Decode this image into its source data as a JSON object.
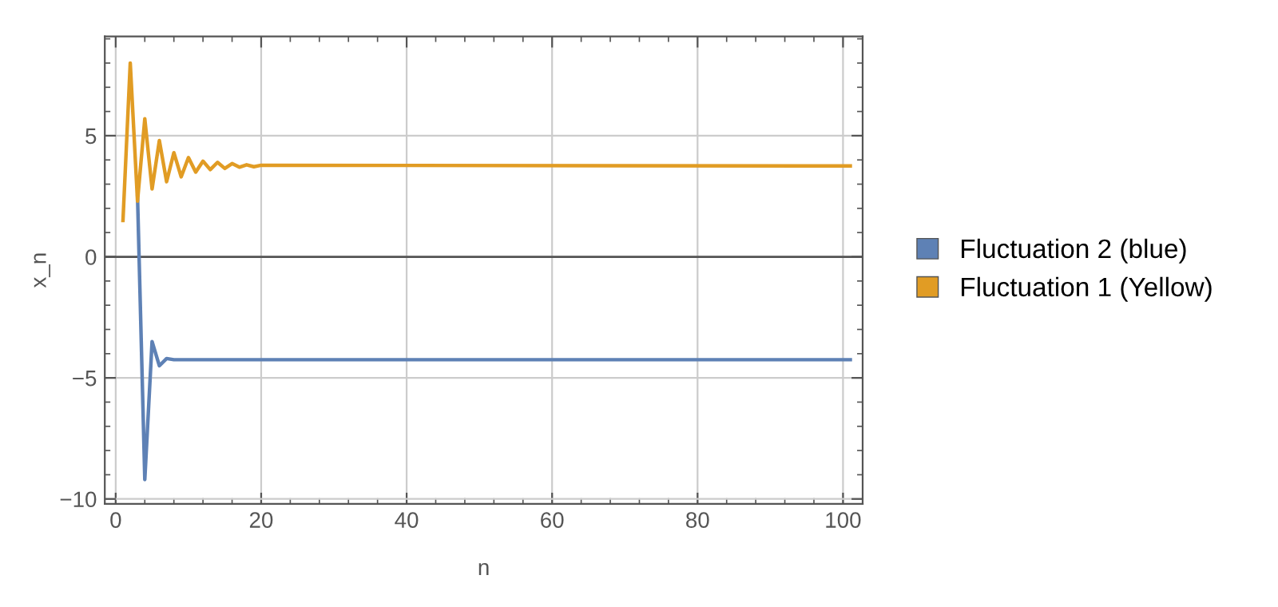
{
  "chart_data": {
    "type": "line",
    "xlabel": "n",
    "ylabel": "x_n",
    "xlim": [
      -1.5,
      102.7
    ],
    "ylim": [
      -10.2,
      9.1
    ],
    "xticks": [
      0,
      20,
      40,
      60,
      80,
      100
    ],
    "yticks": [
      {
        "value": -10,
        "label": "−10"
      },
      {
        "value": -5,
        "label": "−5"
      },
      0,
      5
    ],
    "grid": true,
    "legend": "right",
    "marker": "none",
    "line_style": "solid",
    "ref_lines": [
      {
        "axis": "y",
        "value": 0,
        "color": "#555555"
      }
    ],
    "series": [
      {
        "name": "Fluctuation 2 (blue)",
        "color": "#5e81b5",
        "x": [
          3,
          4,
          5,
          6,
          7,
          8,
          101
        ],
        "values": [
          2.5,
          -9.2,
          -3.5,
          -4.5,
          -4.2,
          -4.25,
          -4.25
        ]
      },
      {
        "name": "Fluctuation 1 (Yellow)",
        "color": "#e19c24",
        "x": [
          1,
          2,
          3,
          4,
          5,
          6,
          7,
          8,
          9,
          10,
          11,
          12,
          13,
          14,
          15,
          16,
          17,
          18,
          19,
          20,
          101
        ],
        "values": [
          1.5,
          8.0,
          2.3,
          5.7,
          2.8,
          4.8,
          3.1,
          4.3,
          3.3,
          4.1,
          3.5,
          3.95,
          3.6,
          3.9,
          3.65,
          3.85,
          3.7,
          3.8,
          3.72,
          3.78,
          3.75
        ]
      }
    ]
  }
}
